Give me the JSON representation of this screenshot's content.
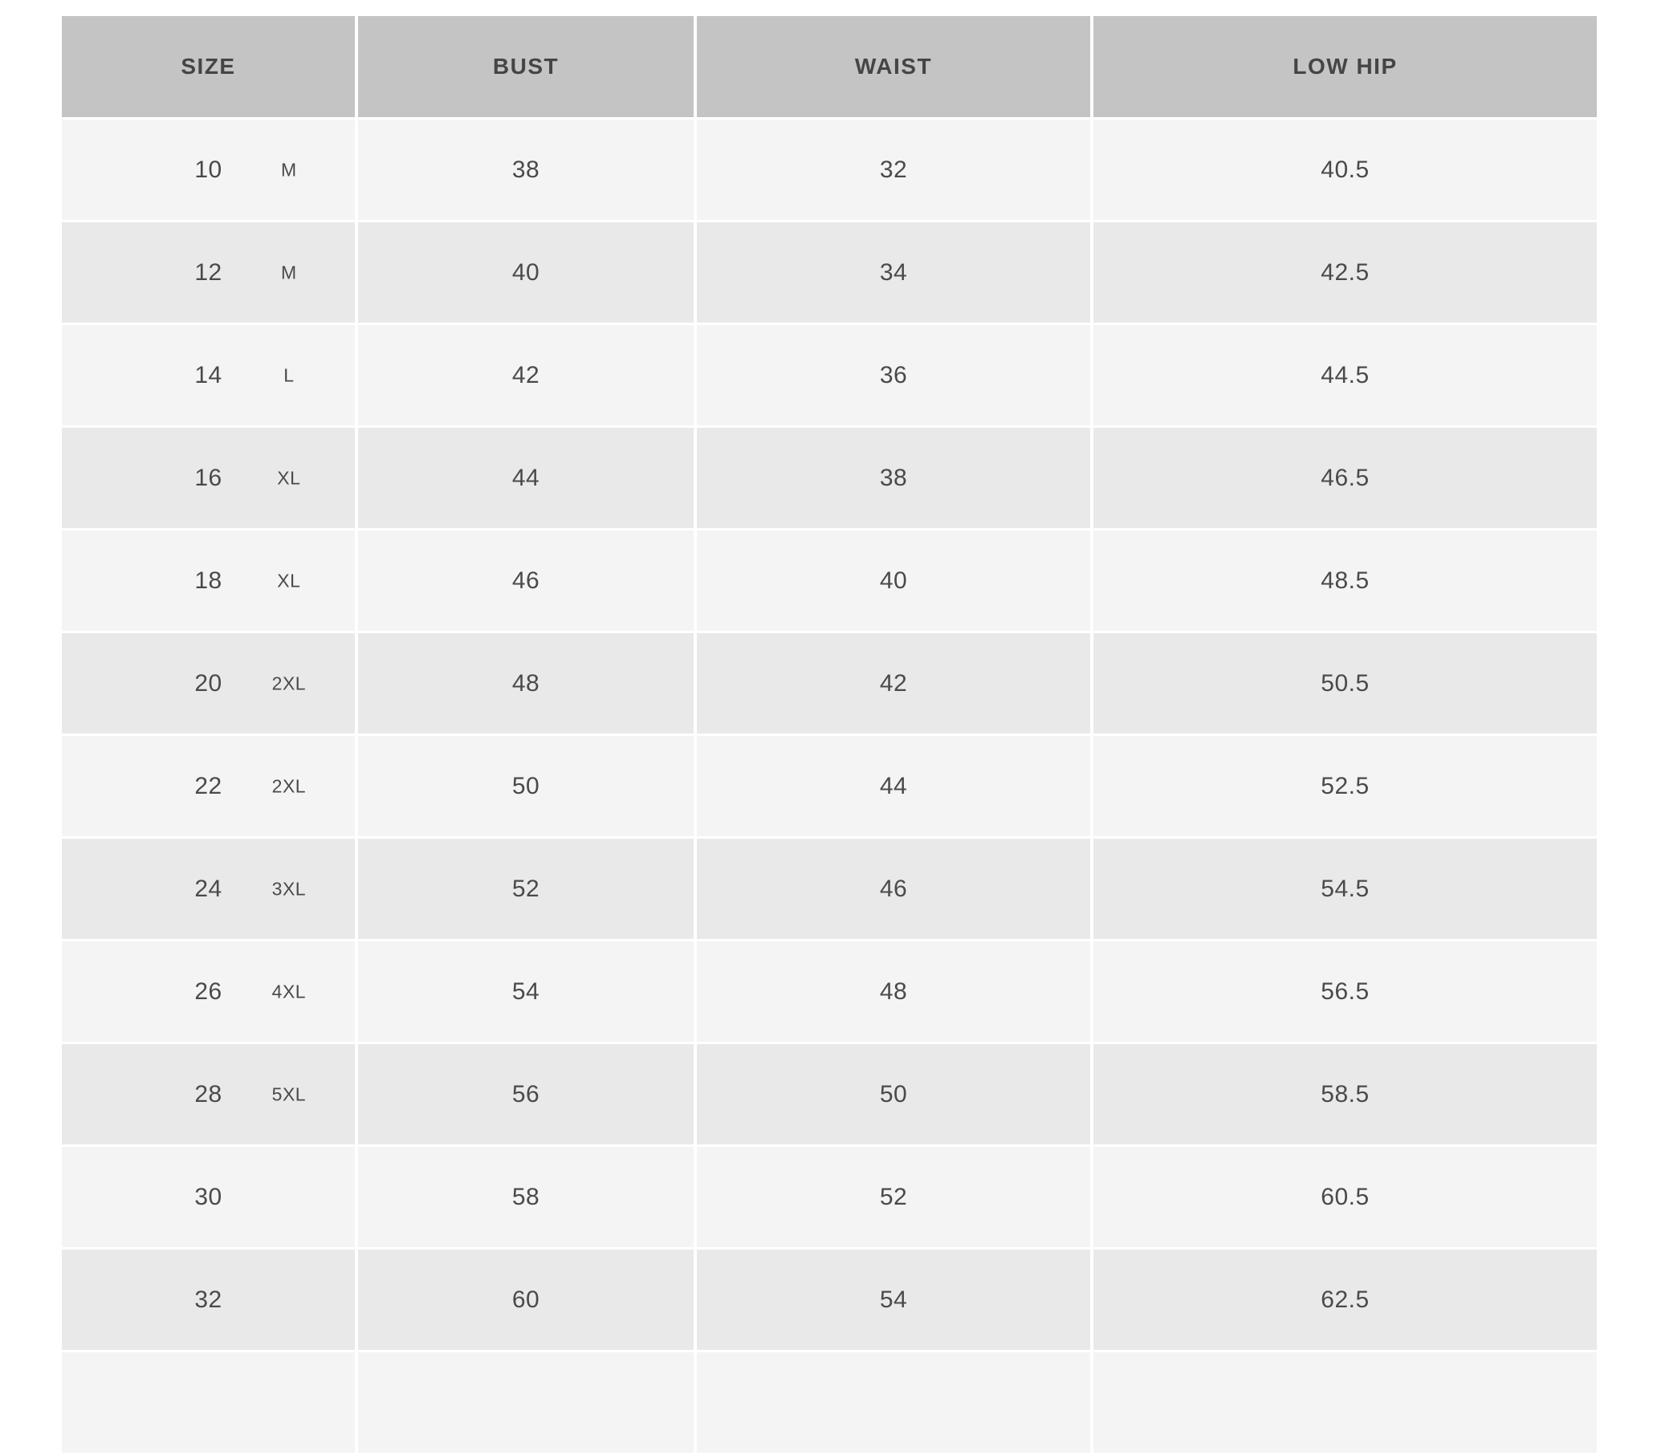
{
  "table": {
    "title": "size-chart",
    "colors": {
      "page_bg": "#ffffff",
      "header_bg": "#c4c4c4",
      "header_text": "#454545",
      "row_light": "#f4f4f4",
      "row_dark": "#e9e9e9",
      "cell_text": "#4a4a4a"
    },
    "columns": [
      {
        "key": "size",
        "label": "SIZE"
      },
      {
        "key": "bust",
        "label": "BUST"
      },
      {
        "key": "waist",
        "label": "WAIST"
      },
      {
        "key": "low_hip",
        "label": "LOW HIP"
      }
    ],
    "rows": [
      {
        "size": "10",
        "letter": "M",
        "bust": "38",
        "waist": "32",
        "low_hip": "40.5"
      },
      {
        "size": "12",
        "letter": "M",
        "bust": "40",
        "waist": "34",
        "low_hip": "42.5"
      },
      {
        "size": "14",
        "letter": "L",
        "bust": "42",
        "waist": "36",
        "low_hip": "44.5"
      },
      {
        "size": "16",
        "letter": "XL",
        "bust": "44",
        "waist": "38",
        "low_hip": "46.5"
      },
      {
        "size": "18",
        "letter": "XL",
        "bust": "46",
        "waist": "40",
        "low_hip": "48.5"
      },
      {
        "size": "20",
        "letter": "2XL",
        "bust": "48",
        "waist": "42",
        "low_hip": "50.5"
      },
      {
        "size": "22",
        "letter": "2XL",
        "bust": "50",
        "waist": "44",
        "low_hip": "52.5"
      },
      {
        "size": "24",
        "letter": "3XL",
        "bust": "52",
        "waist": "46",
        "low_hip": "54.5"
      },
      {
        "size": "26",
        "letter": "4XL",
        "bust": "54",
        "waist": "48",
        "low_hip": "56.5"
      },
      {
        "size": "28",
        "letter": "5XL",
        "bust": "56",
        "waist": "50",
        "low_hip": "58.5"
      },
      {
        "size": "30",
        "letter": "",
        "bust": "58",
        "waist": "52",
        "low_hip": "60.5"
      },
      {
        "size": "32",
        "letter": "",
        "bust": "60",
        "waist": "54",
        "low_hip": "62.5"
      },
      {
        "size": "",
        "letter": "",
        "bust": "",
        "waist": "",
        "low_hip": ""
      }
    ]
  }
}
